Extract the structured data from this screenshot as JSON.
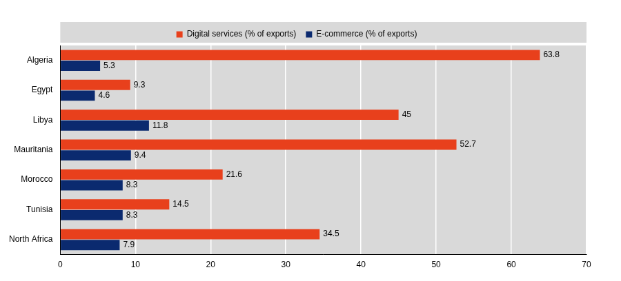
{
  "chart_data": {
    "type": "bar",
    "orientation": "horizontal",
    "categories": [
      "Algeria",
      "Egypt",
      "Libya",
      "Mauritania",
      "Morocco",
      "Tunisia",
      "North Africa"
    ],
    "series": [
      {
        "name": "Digital services (% of exports)",
        "color": "#e8401c",
        "values": [
          63.8,
          9.3,
          45,
          52.7,
          21.6,
          14.5,
          34.5
        ]
      },
      {
        "name": "E-commerce (% of exports)",
        "color": "#0b2a6f",
        "values": [
          5.3,
          4.6,
          11.8,
          9.4,
          8.3,
          8.3,
          7.9
        ]
      }
    ],
    "xlim": [
      0,
      70
    ],
    "xticks": [
      0,
      10,
      20,
      30,
      40,
      50,
      60,
      70
    ],
    "grid": true,
    "legend": "top",
    "data_labels": true
  }
}
